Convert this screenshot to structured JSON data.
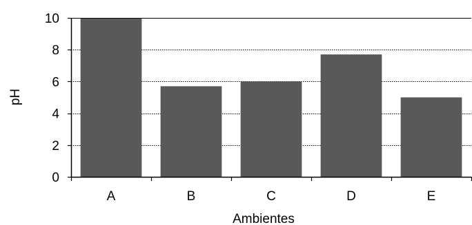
{
  "chart_data": {
    "type": "bar",
    "categories": [
      "A",
      "B",
      "C",
      "D",
      "E"
    ],
    "values": [
      10,
      5.7,
      6.0,
      7.7,
      5.0
    ],
    "title": "",
    "xlabel": "Ambientes",
    "ylabel": "pH",
    "ylim": [
      0,
      10
    ],
    "yticks": [
      0,
      2,
      4,
      6,
      8,
      10
    ],
    "grid": "horizontal dotted",
    "legend": "none",
    "bar_color": "#595959"
  }
}
